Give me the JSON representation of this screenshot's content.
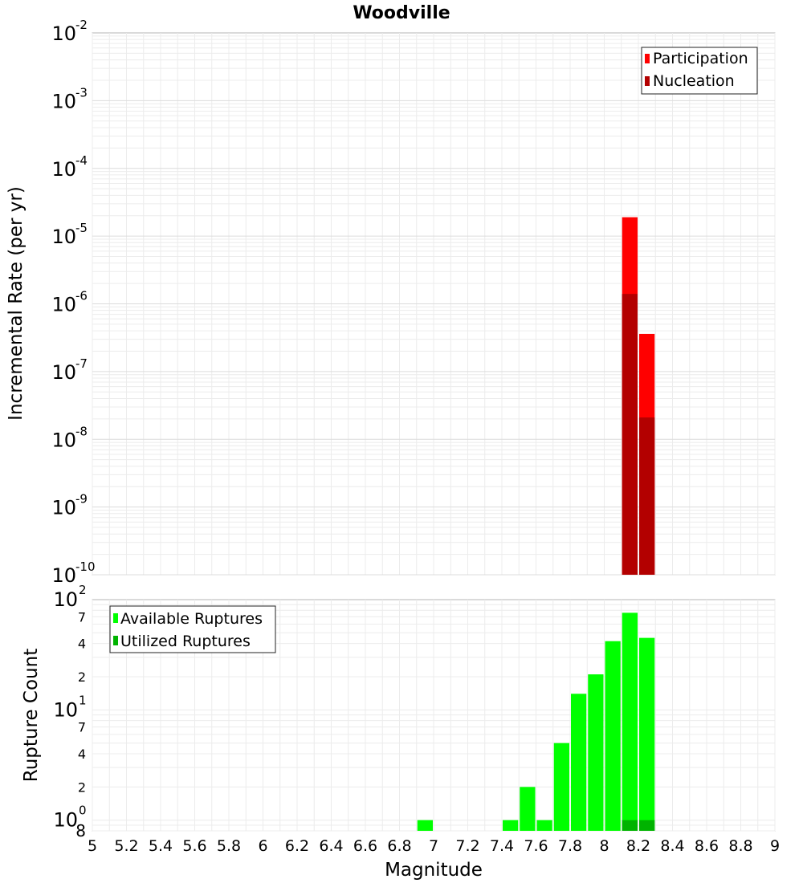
{
  "chart_data": [
    {
      "type": "bar",
      "title": "Woodville",
      "xlabel": "Magnitude",
      "ylabel": "Incremental Rate (per yr)",
      "yscale": "log",
      "ylim": [
        1e-10,
        0.01
      ],
      "xlim": [
        5,
        9
      ],
      "bin_width": 0.1,
      "grid": true,
      "legend_position": "top-right",
      "y_ticks": [
        {
          "base": "10",
          "exp": "-10",
          "value": 1e-10
        },
        {
          "base": "10",
          "exp": "-9",
          "value": 1e-09
        },
        {
          "base": "10",
          "exp": "-8",
          "value": 1e-08
        },
        {
          "base": "10",
          "exp": "-7",
          "value": 1e-07
        },
        {
          "base": "10",
          "exp": "-6",
          "value": 1e-06
        },
        {
          "base": "10",
          "exp": "-5",
          "value": 1e-05
        },
        {
          "base": "10",
          "exp": "-4",
          "value": 0.0001
        },
        {
          "base": "10",
          "exp": "-3",
          "value": 0.001
        },
        {
          "base": "10",
          "exp": "-2",
          "value": 0.01
        }
      ],
      "series": [
        {
          "name": "Participation",
          "color": "#ff0000",
          "points": [
            {
              "x": 8.15,
              "y": 1.9e-05
            },
            {
              "x": 8.25,
              "y": 3.6e-07
            }
          ]
        },
        {
          "name": "Nucleation",
          "color": "#b30000",
          "points": [
            {
              "x": 8.15,
              "y": 1.4e-06
            },
            {
              "x": 8.25,
              "y": 2.1e-08
            }
          ]
        }
      ]
    },
    {
      "type": "bar",
      "xlabel": "Magnitude",
      "ylabel": "Rupture Count",
      "yscale": "log",
      "ylim": [
        0.8,
        100
      ],
      "xlim": [
        5,
        9
      ],
      "bin_width": 0.1,
      "grid": true,
      "legend_position": "top-left",
      "y_major_ticks": [
        {
          "base": "10",
          "exp": "0",
          "value": 1
        },
        {
          "base": "10",
          "exp": "1",
          "value": 10
        },
        {
          "base": "10",
          "exp": "2",
          "value": 100
        }
      ],
      "y_minor_ticks": [
        {
          "label": "8",
          "value": 0.8
        },
        {
          "label": "2",
          "value": 2
        },
        {
          "label": "4",
          "value": 4
        },
        {
          "label": "7",
          "value": 7
        },
        {
          "label": "2",
          "value": 20
        },
        {
          "label": "4",
          "value": 40
        },
        {
          "label": "7",
          "value": 70
        }
      ],
      "series": [
        {
          "name": "Available Ruptures",
          "color": "#00ff00",
          "points": [
            {
              "x": 6.95,
              "y": 1
            },
            {
              "x": 7.45,
              "y": 1
            },
            {
              "x": 7.55,
              "y": 2
            },
            {
              "x": 7.65,
              "y": 1
            },
            {
              "x": 7.75,
              "y": 5
            },
            {
              "x": 7.85,
              "y": 14
            },
            {
              "x": 7.95,
              "y": 21
            },
            {
              "x": 8.05,
              "y": 42
            },
            {
              "x": 8.15,
              "y": 76
            },
            {
              "x": 8.25,
              "y": 45
            }
          ]
        },
        {
          "name": "Utilized Ruptures",
          "color": "#00b300",
          "points": [
            {
              "x": 8.15,
              "y": 1
            },
            {
              "x": 8.25,
              "y": 1
            }
          ]
        }
      ]
    }
  ],
  "x_ticks": [
    "5",
    "5.2",
    "5.4",
    "5.6",
    "5.8",
    "6",
    "6.2",
    "6.4",
    "6.6",
    "6.8",
    "7",
    "7.2",
    "7.4",
    "7.6",
    "7.8",
    "8",
    "8.2",
    "8.4",
    "8.6",
    "8.8",
    "9"
  ]
}
